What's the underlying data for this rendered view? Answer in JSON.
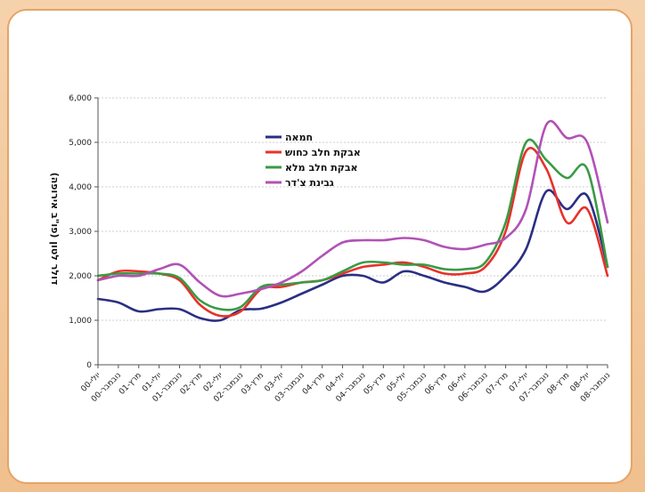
{
  "chart_data": {
    "type": "line",
    "title": "",
    "xlabel": "",
    "ylabel": "דולר לטון (פו\"ב אירופה)",
    "ylim": [
      0,
      6000
    ],
    "yticks": [
      0,
      1000,
      2000,
      3000,
      4000,
      5000,
      6000
    ],
    "ytick_labels": [
      "0",
      "1,000",
      "2,000",
      "3,000",
      "4,000",
      "5,000",
      "6,000"
    ],
    "grid": true,
    "legend_position": "top-center",
    "x_tick_labels": [
      "יולי-00",
      "נובמבר-00",
      "מרץ-01",
      "יולי-01",
      "נובמבר-01",
      "מרץ-02",
      "יולי-02",
      "נובמבר-02",
      "מרץ-03",
      "יולי-03",
      "נובמבר-03",
      "מרץ-04",
      "יולי-04",
      "נובמבר-04",
      "מרץ-05",
      "יולי-05",
      "נובמבר-05",
      "מרץ-06",
      "יולי-06",
      "נובמבר-06",
      "מרץ-07",
      "יולי-07",
      "נובמבר-07",
      "מרץ-08",
      "יולי-08",
      "נובמבר-08"
    ],
    "x": [
      0,
      1,
      2,
      3,
      4,
      5,
      6,
      7,
      8,
      9,
      10,
      11,
      12,
      13,
      14,
      15,
      16,
      17,
      18,
      19,
      20,
      21,
      22,
      23,
      24,
      25
    ],
    "series": [
      {
        "name": "חמאה",
        "color": "#2b2f82",
        "values": [
          1480,
          1400,
          1200,
          1250,
          1250,
          1050,
          1000,
          1230,
          1260,
          1400,
          1600,
          1800,
          2000,
          2000,
          1850,
          2100,
          2000,
          1850,
          1750,
          1650,
          2000,
          2600,
          3900,
          3500,
          3800,
          2200
        ]
      },
      {
        "name": "אבקת חלב כחוש",
        "color": "#e8312a",
        "values": [
          1900,
          2100,
          2100,
          2050,
          1900,
          1350,
          1100,
          1200,
          1700,
          1750,
          1850,
          1900,
          2050,
          2200,
          2250,
          2300,
          2200,
          2050,
          2050,
          2200,
          3000,
          4800,
          4400,
          3200,
          3500,
          2000
        ]
      },
      {
        "name": "אבקת חלב מלא",
        "color": "#3a9a44",
        "values": [
          2000,
          2050,
          2050,
          2050,
          1950,
          1450,
          1250,
          1300,
          1750,
          1800,
          1850,
          1900,
          2100,
          2300,
          2300,
          2250,
          2250,
          2150,
          2150,
          2300,
          3200,
          5000,
          4600,
          4200,
          4400,
          2200
        ]
      },
      {
        "name": "גבינת צ'דר",
        "color": "#b152b6",
        "values": [
          1900,
          2000,
          2000,
          2150,
          2250,
          1850,
          1550,
          1600,
          1700,
          1850,
          2100,
          2450,
          2750,
          2800,
          2800,
          2850,
          2800,
          2650,
          2600,
          2700,
          2850,
          3500,
          5400,
          5100,
          5000,
          3200
        ]
      }
    ]
  }
}
